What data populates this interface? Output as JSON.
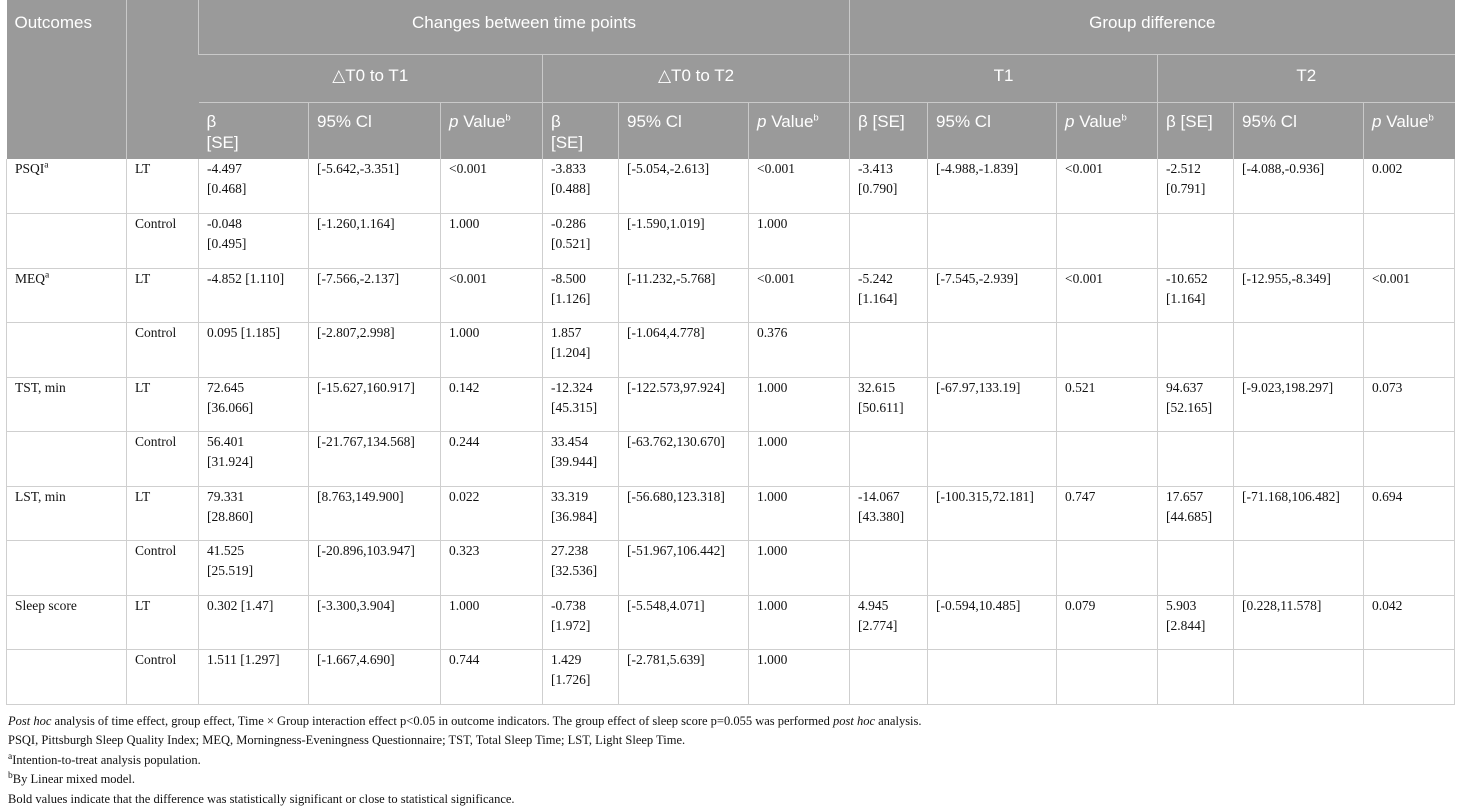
{
  "header": {
    "outcomes": "Outcomes",
    "changes": "Changes between time points",
    "group_diff": "Group difference",
    "delta_t1": "△T0 to T1",
    "delta_t2": "△T0 to T2",
    "t1": "T1",
    "t2": "T2",
    "beta": "β",
    "se": "[SE]",
    "beta_se": "β [SE]",
    "ci": "95% Cl",
    "p": "p",
    "value": " Value",
    "sup_b": "b"
  },
  "rows": [
    {
      "outcome": "PSQI",
      "outcome_sup": "a",
      "outcome_bold": false,
      "group": "LT",
      "t1_beta": "-4.497",
      "t1_se": "[0.468]",
      "t1_ci": "[-5.642,-3.351]",
      "t1_p": "<0.001",
      "t1_p_bold": true,
      "t2_beta": "-3.833",
      "t2_se": "[0.488]",
      "t2_ci": "[-5.054,-2.613]",
      "t2_p": "<0.001",
      "t2_p_bold": true,
      "g1_beta": "-3.413",
      "g1_se": "[0.790]",
      "g1_ci": "[-4.988,-1.839]",
      "g1_p": "<0.001",
      "g1_p_bold": true,
      "g2_beta": "-2.512",
      "g2_se": "[0.791]",
      "g2_ci": "[-4.088,-0.936]",
      "g2_p": "0.002",
      "g2_p_bold": true
    },
    {
      "outcome": "",
      "group": "Control",
      "t1_beta": "-0.048",
      "t1_se": "[0.495]",
      "t1_ci": "[-1.260,1.164]",
      "t1_p": "1.000",
      "t2_beta": "-0.286",
      "t2_se": "[0.521]",
      "t2_ci": "[-1.590,1.019]",
      "t2_p": "1.000"
    },
    {
      "outcome": "MEQ",
      "outcome_sup": "a",
      "outcome_bold": false,
      "group": "LT",
      "t1_beta": "-4.852 [1.110]",
      "t1_se": "",
      "t1_ci": "[-7.566,-2.137]",
      "t1_p": "<0.001",
      "t1_p_bold": true,
      "t2_beta": "-8.500",
      "t2_se": "[1.126]",
      "t2_ci": "[-11.232,-5.768]",
      "t2_p": "<0.001",
      "t2_p_bold": true,
      "g1_beta": "-5.242",
      "g1_se": "[1.164]",
      "g1_ci": "[-7.545,-2.939]",
      "g1_p": "<0.001",
      "g1_p_bold": true,
      "g2_beta": "-10.652",
      "g2_se": "[1.164]",
      "g2_ci": "[-12.955,-8.349]",
      "g2_p": "<0.001",
      "g2_p_bold": true
    },
    {
      "outcome": "",
      "group": "Control",
      "t1_beta": "0.095 [1.185]",
      "t1_se": "",
      "t1_ci": "[-2.807,2.998]",
      "t1_p": "1.000",
      "t2_beta": "1.857",
      "t2_se": "[1.204]",
      "t2_ci": "[-1.064,4.778]",
      "t2_p": "0.376"
    },
    {
      "outcome": "TST, min",
      "outcome_bold": true,
      "group": "LT",
      "t1_beta": "72.645",
      "t1_se": "[36.066]",
      "t1_ci": "[-15.627,160.917]",
      "t1_p": "0.142",
      "t2_beta": "-12.324",
      "t2_se": "[45.315]",
      "t2_ci": "[-122.573,97.924]",
      "t2_p": "1.000",
      "g1_beta": "32.615",
      "g1_se": "[50.611]",
      "g1_ci": "[-67.97,133.19]",
      "g1_p": "0.521",
      "g2_beta": "94.637",
      "g2_se": "[52.165]",
      "g2_ci": "[-9.023,198.297]",
      "g2_p": "0.073",
      "g2_p_bold": true
    },
    {
      "outcome": "",
      "group": "Control",
      "t1_beta": "56.401",
      "t1_se": "[31.924]",
      "t1_ci": "[-21.767,134.568]",
      "t1_p": "0.244",
      "t2_beta": "33.454",
      "t2_se": "[39.944]",
      "t2_ci": "[-63.762,130.670]",
      "t2_p": "1.000"
    },
    {
      "outcome": "LST, min",
      "outcome_bold": true,
      "group": "LT",
      "t1_beta": "79.331",
      "t1_se": "[28.860]",
      "t1_ci": "[8.763,149.900]",
      "t1_p": "0.022",
      "t1_p_bold": true,
      "t2_beta": "33.319",
      "t2_se": "[36.984]",
      "t2_ci": "[-56.680,123.318]",
      "t2_p": "1.000",
      "g1_beta": "-14.067",
      "g1_se": "[43.380]",
      "g1_ci": "[-100.315,72.181]",
      "g1_p": "0.747",
      "g2_beta": "17.657",
      "g2_se": "[44.685]",
      "g2_ci": "[-71.168,106.482]",
      "g2_p": "0.694"
    },
    {
      "outcome": "",
      "group": "Control",
      "t1_beta": "41.525",
      "t1_se": "[25.519]",
      "t1_ci": "[-20.896,103.947]",
      "t1_p": "0.323",
      "t2_beta": "27.238",
      "t2_se": "[32.536]",
      "t2_ci": "[-51.967,106.442]",
      "t2_p": "1.000"
    },
    {
      "outcome": "Sleep score",
      "outcome_bold": true,
      "group": "LT",
      "t1_beta": "0.302 [1.47]",
      "t1_se": "",
      "t1_ci": "[-3.300,3.904]",
      "t1_p": "1.000",
      "t2_beta": "-0.738",
      "t2_se": "[1.972]",
      "t2_ci": "[-5.548,4.071]",
      "t2_p": "1.000",
      "g1_beta": "4.945",
      "g1_se": "[2.774]",
      "g1_ci": "[-0.594,10.485]",
      "g1_p": "0.079",
      "g2_beta": "5.903",
      "g2_se": "[2.844]",
      "g2_ci": "[0.228,11.578]",
      "g2_p": "0.042",
      "g2_p_bold": true
    },
    {
      "outcome": "",
      "group": "Control",
      "t1_beta": "1.511 [1.297]",
      "t1_se": "",
      "t1_ci": "[-1.667,4.690]",
      "t1_p": "0.744",
      "t2_beta": "1.429",
      "t2_se": "[1.726]",
      "t2_ci": "[-2.781,5.639]",
      "t2_p": "1.000"
    }
  ],
  "footnotes": {
    "line1_a": "Post hoc",
    "line1_b": " analysis of time effect, group effect, Time × Group interaction effect p<0.05 in outcome indicators. The group effect of sleep score p=0.055 was performed ",
    "line1_c": "post hoc",
    "line1_d": " analysis.",
    "line2": "PSQI, Pittsburgh Sleep Quality Index; MEQ, Morningness-Eveningness Questionnaire; TST, Total Sleep Time; LST, Light Sleep Time.",
    "line3_sup": "a",
    "line3": "Intention-to-treat analysis population.",
    "line4_sup": "b",
    "line4": "By Linear mixed model.",
    "line5": "Bold values indicate that the difference was statistically significant or close to statistical significance."
  }
}
